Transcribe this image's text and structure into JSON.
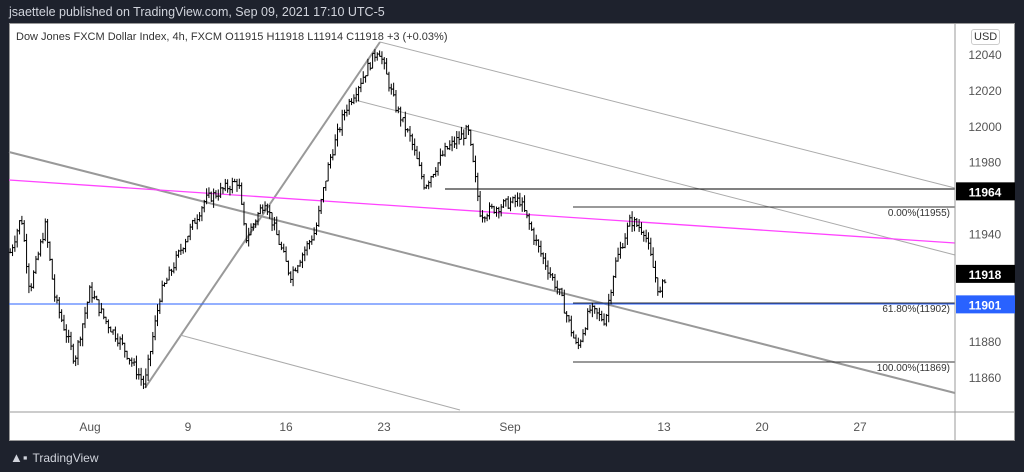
{
  "header": {
    "published": "jsaettele published on TradingView.com, Sep 09, 2021 17:10 UTC-5"
  },
  "legend": "Dow Jones FXCM Dollar Index, 4h, FXCM  O11915  H11918  L11914  C11918  +3 (+0.03%)",
  "currency": "USD",
  "footer": {
    "brand": "TradingView"
  },
  "chart_data": {
    "type": "ohlc",
    "title": "Dow Jones FXCM Dollar Index, 4h, FXCM",
    "ylim": [
      11848,
      12050
    ],
    "y_ticks": [
      12040,
      12020,
      12000,
      11980,
      11940,
      11880,
      11860
    ],
    "x_ticks": [
      {
        "label": "Aug",
        "d": 0
      },
      {
        "label": "9",
        "d": 7
      },
      {
        "label": "16",
        "d": 14
      },
      {
        "label": "23",
        "d": 21
      },
      {
        "label": "Sep",
        "d": 30
      },
      {
        "label": "13",
        "d": 41
      },
      {
        "label": "20",
        "d": 48
      },
      {
        "label": "27",
        "d": 55
      }
    ],
    "price_path_days_from_aug2": [
      [
        -5.7,
        11930
      ],
      [
        -4.9,
        11950
      ],
      [
        -4.3,
        11909
      ],
      [
        -3.2,
        11945
      ],
      [
        -2.5,
        11904
      ],
      [
        -1.1,
        11870
      ],
      [
        0,
        11909
      ],
      [
        1.1,
        11892
      ],
      [
        2.1,
        11881
      ],
      [
        3.9,
        11856
      ],
      [
        5,
        11906
      ],
      [
        6.8,
        11937
      ],
      [
        8.2,
        11959
      ],
      [
        10.6,
        11970
      ],
      [
        11.1,
        11937
      ],
      [
        12.5,
        11959
      ],
      [
        14.3,
        11917
      ],
      [
        16.1,
        11942
      ],
      [
        17.1,
        11981
      ],
      [
        18.2,
        12009
      ],
      [
        20.6,
        12044
      ],
      [
        21.8,
        12012
      ],
      [
        22.9,
        11993
      ],
      [
        23.9,
        11967
      ],
      [
        25.4,
        11987
      ],
      [
        27,
        11998
      ],
      [
        27.9,
        11951
      ],
      [
        29.3,
        11956
      ],
      [
        30.7,
        11959
      ],
      [
        32.1,
        11931
      ],
      [
        33.6,
        11906
      ],
      [
        34.8,
        11876
      ],
      [
        35.7,
        11898
      ],
      [
        36.8,
        11892
      ],
      [
        37.5,
        11923
      ],
      [
        38.6,
        11948
      ],
      [
        39.6,
        11942
      ],
      [
        40.7,
        11906
      ],
      [
        41.1,
        11917
      ]
    ],
    "price_labels": [
      {
        "value": "11964",
        "color": "#000000"
      },
      {
        "value": "11918",
        "color": "#000000"
      },
      {
        "value": "11901",
        "color": "#2962ff"
      }
    ],
    "fib_levels": [
      {
        "label": "0.00%(11955)",
        "price": 11955
      },
      {
        "label": "61.80%(11902)",
        "price": 11902
      },
      {
        "label": "100.00%(11869)",
        "price": 11869
      }
    ],
    "horizontal_levels": [
      {
        "price": 11964,
        "color": "#000000"
      },
      {
        "price": 11901,
        "color": "#2962ff"
      }
    ],
    "trendline_color": "#ff44ff"
  }
}
